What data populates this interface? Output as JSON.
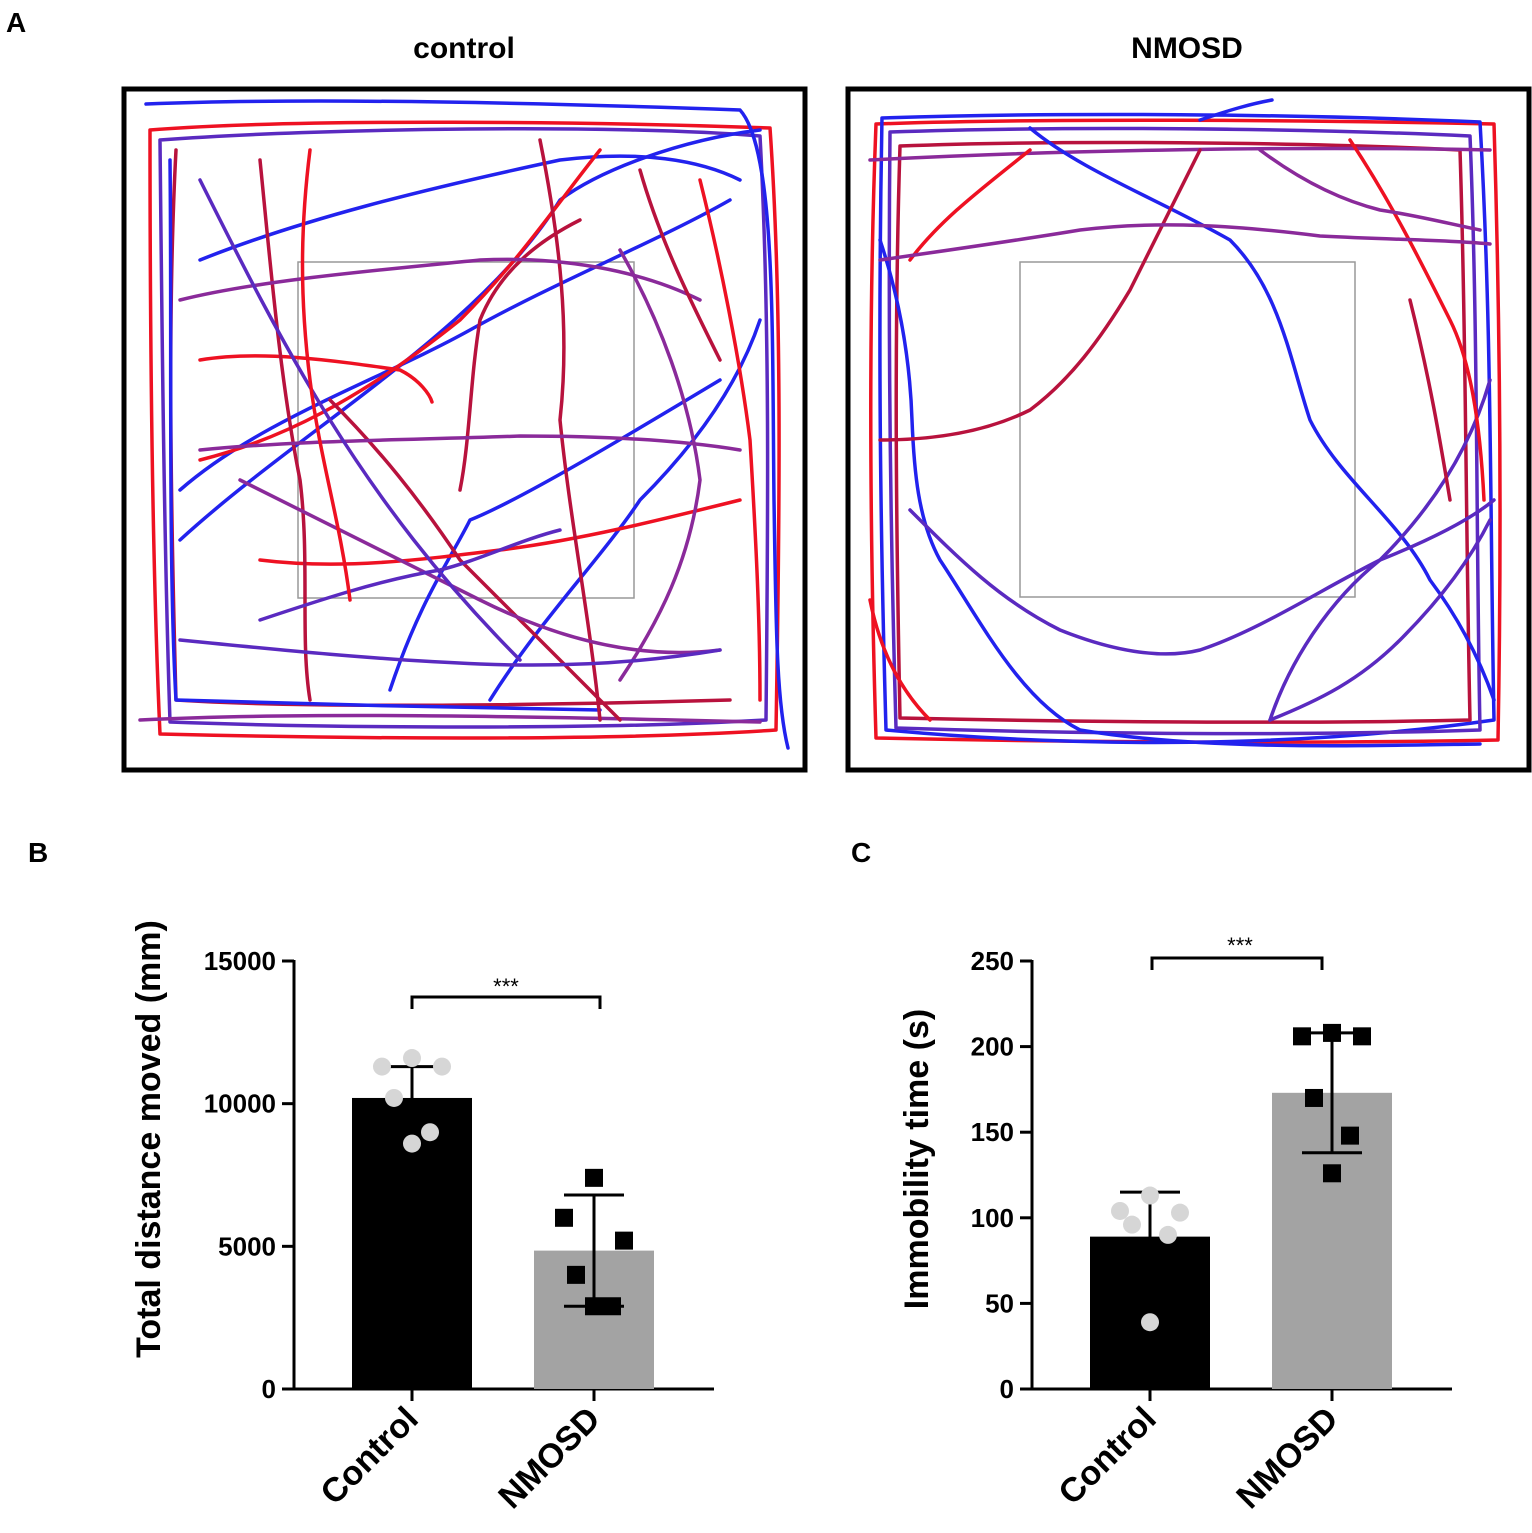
{
  "panel_labels": {
    "a": "A",
    "b": "B",
    "c": "C"
  },
  "panel_a": {
    "titles": {
      "control": "control",
      "nmosd": "NMOSD"
    },
    "colors": {
      "red": "#ee1122",
      "purple": "#8a2a9a",
      "crimson": "#b8123d",
      "blue": "#2222ee",
      "indigo": "#5a2ac0"
    }
  },
  "chart_data": [
    {
      "type": "bar",
      "panel": "B",
      "categories": [
        "Control",
        "NMOSD"
      ],
      "values": [
        10200,
        4850
      ],
      "errors": [
        1100,
        1950
      ],
      "points": [
        [
          11600,
          11300,
          11300,
          10200,
          9000,
          8600
        ],
        [
          7400,
          6000,
          5200,
          4000,
          2900,
          2900
        ]
      ],
      "colors": [
        "#000000",
        "#a3a3a3"
      ],
      "point_colors": [
        "#d6d6d6",
        "#000000"
      ],
      "point_shapes": [
        "circle",
        "square"
      ],
      "xlabel": "",
      "ylabel": "Total distance moved (mm)",
      "ylim": [
        0,
        15000
      ],
      "yticks": [
        0,
        5000,
        10000,
        15000
      ],
      "ytick_labels": [
        "0",
        "5000",
        "10000",
        "15000"
      ],
      "significance": "***"
    },
    {
      "type": "bar",
      "panel": "C",
      "categories": [
        "Control",
        "NMOSD"
      ],
      "values": [
        89,
        173
      ],
      "errors": [
        26,
        35
      ],
      "points": [
        [
          113,
          104,
          103,
          96,
          90,
          39
        ],
        [
          208,
          206,
          206,
          170,
          148,
          126
        ]
      ],
      "colors": [
        "#000000",
        "#a3a3a3"
      ],
      "point_colors": [
        "#d6d6d6",
        "#000000"
      ],
      "point_shapes": [
        "circle",
        "square"
      ],
      "xlabel": "",
      "ylabel": "Immobility time (s)",
      "ylim": [
        0,
        250
      ],
      "yticks": [
        0,
        50,
        100,
        150,
        200,
        250
      ],
      "ytick_labels": [
        "0",
        "50",
        "100",
        "150",
        "200",
        "250"
      ],
      "significance": "***"
    }
  ]
}
